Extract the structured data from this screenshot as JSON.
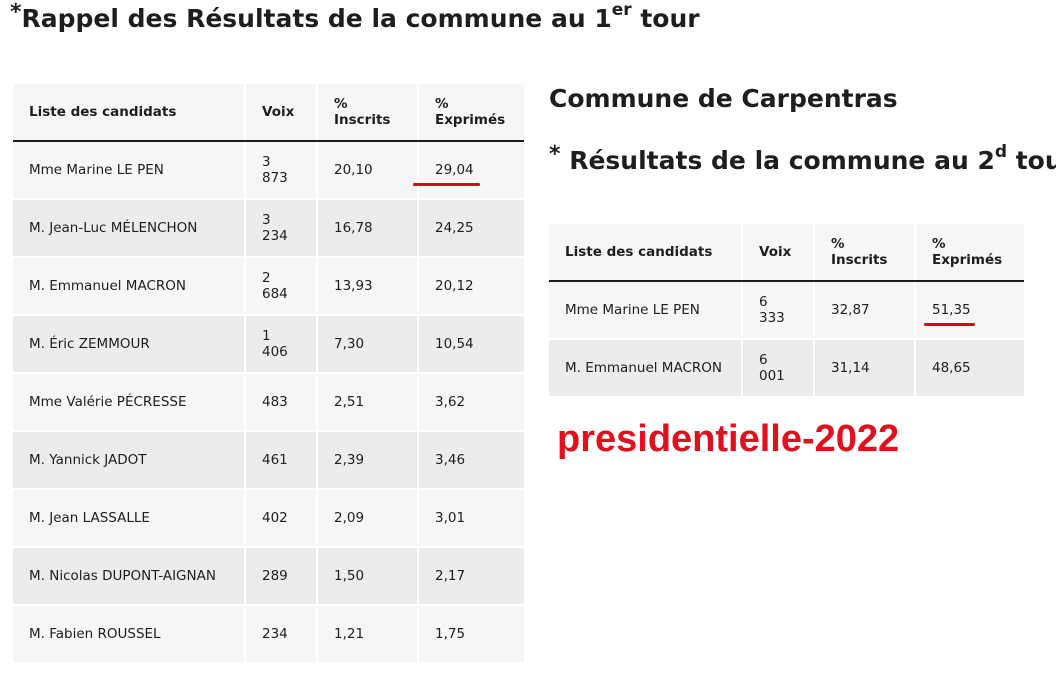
{
  "header": {
    "star": "*",
    "title_main": "Rappel des Résultats de la commune au 1",
    "title_sup": "er",
    "title_end": " tour"
  },
  "table1": {
    "headers": [
      "Liste des candidats",
      "Voix",
      "% Inscrits",
      "% Exprimés"
    ],
    "rows": [
      [
        "Mme Marine LE PEN",
        "3 873",
        "20,10",
        "29,04"
      ],
      [
        "M. Jean-Luc MÉLENCHON",
        "3 234",
        "16,78",
        "24,25"
      ],
      [
        "M. Emmanuel MACRON",
        "2 684",
        "13,93",
        "20,12"
      ],
      [
        "M. Éric ZEMMOUR",
        "1 406",
        "7,30",
        "10,54"
      ],
      [
        "Mme Valérie PÉCRESSE",
        "483",
        "2,51",
        "3,62"
      ],
      [
        "M. Yannick JADOT",
        "461",
        "2,39",
        "3,46"
      ],
      [
        "M. Jean LASSALLE",
        "402",
        "2,09",
        "3,01"
      ],
      [
        "M. Nicolas DUPONT-AIGNAN",
        "289",
        "1,50",
        "2,17"
      ],
      [
        "M. Fabien ROUSSEL",
        "234",
        "1,21",
        "1,75"
      ]
    ]
  },
  "commune_title": "Commune de Carpentras",
  "second_round": {
    "star": "*",
    "title_main": " Résultats de la commune au 2",
    "title_sup": "d",
    "title_end": " tour"
  },
  "table2": {
    "headers": [
      "Liste des candidats",
      "Voix",
      "% Inscrits",
      "% Exprimés"
    ],
    "rows": [
      [
        "Mme Marine LE PEN",
        "6 333",
        "32,87",
        "51,35"
      ],
      [
        "M. Emmanuel MACRON",
        "6 001",
        "31,14",
        "48,65"
      ]
    ]
  },
  "stamp_text": "presidentielle-2022",
  "colors": {
    "highlight": "#e0001a",
    "header_bg": "#f6f6f6",
    "row_alt": "#ececec"
  }
}
